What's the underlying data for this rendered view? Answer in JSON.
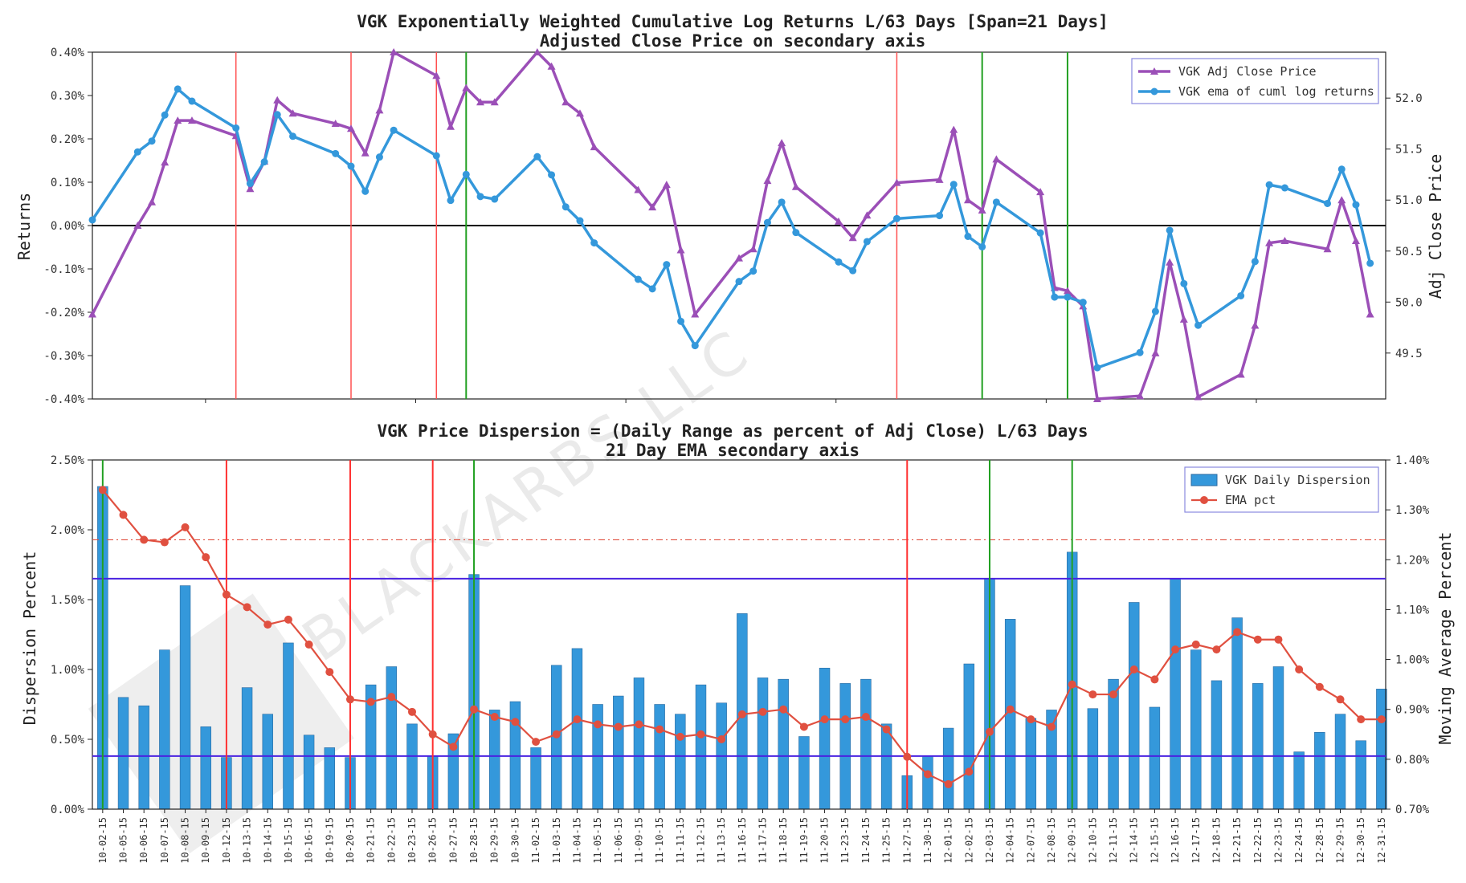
{
  "watermark": "BLACKARBS LLC",
  "chart_data": [
    {
      "type": "line",
      "title": "VGK Exponentially Weighted Cumulative Log Returns L/63 Days [Span=21 Days]",
      "subtitle": "Adjusted Close Price on secondary axis",
      "ylabel": "Returns",
      "y2label": "Adj Close Price",
      "ylim": [
        -0.4,
        0.4
      ],
      "y2lim": [
        49.05,
        52.45
      ],
      "xlim": [
        0,
        1
      ],
      "yticks": [
        "0.40%",
        "0.30%",
        "0.20%",
        "0.10%",
        "0.00%",
        "-0.10%",
        "-0.20%",
        "-0.30%",
        "-0.40%"
      ],
      "ytick_values": [
        0.4,
        0.3,
        0.2,
        0.1,
        0.0,
        -0.1,
        -0.2,
        -0.3,
        -0.4
      ],
      "y2ticks": [
        "52.0",
        "51.5",
        "51.0",
        "50.5",
        "50.0",
        "49.5"
      ],
      "y2tick_values": [
        52.0,
        51.5,
        51.0,
        50.5,
        50.0,
        49.5
      ],
      "zero_line": 0.0,
      "legend": [
        "VGK Adj Close Price",
        "VGK ema of cuml log returns"
      ],
      "legend_position": "top-right",
      "red_vlines": [
        0.111,
        0.2,
        0.266,
        0.622
      ],
      "green_vlines": [
        0.289,
        0.688,
        0.754
      ],
      "series": [
        {
          "name": "VGK Adj Close Price",
          "axis": "secondary",
          "color": "#9b4fb7",
          "marker": "triangle",
          "points": [
            [
              0.0,
              49.88
            ],
            [
              0.035,
              50.75
            ],
            [
              0.046,
              50.98
            ],
            [
              0.056,
              51.37
            ],
            [
              0.066,
              51.78
            ],
            [
              0.077,
              51.78
            ],
            [
              0.111,
              51.63
            ],
            [
              0.122,
              51.11
            ],
            [
              0.133,
              51.38
            ],
            [
              0.143,
              51.98
            ],
            [
              0.155,
              51.85
            ],
            [
              0.188,
              51.75
            ],
            [
              0.2,
              51.7
            ],
            [
              0.211,
              51.46
            ],
            [
              0.222,
              51.88
            ],
            [
              0.233,
              52.45
            ],
            [
              0.266,
              52.22
            ],
            [
              0.277,
              51.72
            ],
            [
              0.289,
              52.1
            ],
            [
              0.3,
              51.96
            ],
            [
              0.311,
              51.96
            ],
            [
              0.344,
              52.45
            ],
            [
              0.355,
              52.31
            ],
            [
              0.366,
              51.96
            ],
            [
              0.377,
              51.85
            ],
            [
              0.388,
              51.52
            ],
            [
              0.422,
              51.1
            ],
            [
              0.433,
              50.93
            ],
            [
              0.444,
              51.15
            ],
            [
              0.455,
              50.51
            ],
            [
              0.466,
              49.88
            ],
            [
              0.5,
              50.43
            ],
            [
              0.511,
              50.52
            ],
            [
              0.522,
              51.19
            ],
            [
              0.533,
              51.56
            ],
            [
              0.544,
              51.13
            ],
            [
              0.577,
              50.79
            ],
            [
              0.588,
              50.63
            ],
            [
              0.599,
              50.85
            ],
            [
              0.622,
              51.17
            ],
            [
              0.655,
              51.2
            ],
            [
              0.666,
              51.69
            ],
            [
              0.677,
              51.0
            ],
            [
              0.688,
              50.9
            ],
            [
              0.699,
              51.4
            ],
            [
              0.733,
              51.08
            ],
            [
              0.744,
              50.14
            ],
            [
              0.754,
              50.11
            ],
            [
              0.766,
              49.96
            ],
            [
              0.777,
              49.05
            ],
            [
              0.81,
              49.08
            ],
            [
              0.822,
              49.5
            ],
            [
              0.833,
              50.39
            ],
            [
              0.844,
              49.83
            ],
            [
              0.855,
              49.07
            ],
            [
              0.888,
              49.29
            ],
            [
              0.899,
              49.77
            ],
            [
              0.91,
              50.58
            ],
            [
              0.922,
              50.6
            ],
            [
              0.955,
              50.52
            ],
            [
              0.966,
              51.0
            ],
            [
              0.977,
              50.6
            ],
            [
              0.988,
              49.88
            ]
          ]
        },
        {
          "name": "VGK ema of cuml log returns",
          "axis": "primary",
          "color": "#3498db",
          "marker": "circle",
          "points": [
            [
              0.0,
              0.013
            ],
            [
              0.035,
              0.17
            ],
            [
              0.046,
              0.195
            ],
            [
              0.056,
              0.255
            ],
            [
              0.066,
              0.315
            ],
            [
              0.077,
              0.287
            ],
            [
              0.111,
              0.225
            ],
            [
              0.122,
              0.097
            ],
            [
              0.133,
              0.147
            ],
            [
              0.143,
              0.256
            ],
            [
              0.155,
              0.206
            ],
            [
              0.188,
              0.166
            ],
            [
              0.2,
              0.137
            ],
            [
              0.211,
              0.079
            ],
            [
              0.222,
              0.158
            ],
            [
              0.233,
              0.22
            ],
            [
              0.266,
              0.161
            ],
            [
              0.277,
              0.058
            ],
            [
              0.289,
              0.118
            ],
            [
              0.3,
              0.067
            ],
            [
              0.311,
              0.061
            ],
            [
              0.344,
              0.159
            ],
            [
              0.355,
              0.117
            ],
            [
              0.366,
              0.043
            ],
            [
              0.377,
              0.011
            ],
            [
              0.388,
              -0.04
            ],
            [
              0.422,
              -0.124
            ],
            [
              0.433,
              -0.146
            ],
            [
              0.444,
              -0.09
            ],
            [
              0.455,
              -0.221
            ],
            [
              0.466,
              -0.277
            ],
            [
              0.5,
              -0.129
            ],
            [
              0.511,
              -0.105
            ],
            [
              0.522,
              0.007
            ],
            [
              0.533,
              0.054
            ],
            [
              0.544,
              -0.016
            ],
            [
              0.577,
              -0.084
            ],
            [
              0.588,
              -0.104
            ],
            [
              0.599,
              -0.037
            ],
            [
              0.622,
              0.016
            ],
            [
              0.655,
              0.023
            ],
            [
              0.666,
              0.095
            ],
            [
              0.677,
              -0.025
            ],
            [
              0.688,
              -0.049
            ],
            [
              0.699,
              0.054
            ],
            [
              0.733,
              -0.017
            ],
            [
              0.744,
              -0.165
            ],
            [
              0.754,
              -0.165
            ],
            [
              0.766,
              -0.177
            ],
            [
              0.777,
              -0.328
            ],
            [
              0.81,
              -0.293
            ],
            [
              0.822,
              -0.198
            ],
            [
              0.833,
              -0.011
            ],
            [
              0.844,
              -0.134
            ],
            [
              0.855,
              -0.23
            ],
            [
              0.888,
              -0.162
            ],
            [
              0.899,
              -0.083
            ],
            [
              0.91,
              0.094
            ],
            [
              0.922,
              0.087
            ],
            [
              0.955,
              0.051
            ],
            [
              0.966,
              0.13
            ],
            [
              0.977,
              0.048
            ],
            [
              0.988,
              -0.087
            ]
          ]
        }
      ]
    },
    {
      "type": "bar",
      "title": "VGK Price Dispersion = (Daily Range as percent of Adj Close) L/63 Days",
      "subtitle": "21 Day EMA secondary axis",
      "ylabel": "Dispersion Percent",
      "y2label": "Moving Average Percent",
      "ylim": [
        0,
        2.5
      ],
      "y2lim": [
        0.7,
        1.4
      ],
      "yticks": [
        "2.50%",
        "2.00%",
        "1.50%",
        "1.00%",
        "0.50%",
        "0.00%"
      ],
      "ytick_values": [
        2.5,
        2.0,
        1.5,
        1.0,
        0.5,
        0.0
      ],
      "y2ticks": [
        "1.40%",
        "1.30%",
        "1.20%",
        "1.10%",
        "1.00%",
        "0.90%",
        "0.80%",
        "0.70%"
      ],
      "y2tick_values": [
        1.4,
        1.3,
        1.2,
        1.1,
        1.0,
        0.9,
        0.8,
        0.7
      ],
      "legend": [
        "VGK Daily Dispersion",
        "EMA pct"
      ],
      "legend_position": "top-right",
      "hlines_primary": [
        1.65,
        0.38
      ],
      "hline_secondary_dashed": 1.24,
      "red_vline_categories": [
        6,
        12,
        16,
        39
      ],
      "green_vline_categories": [
        0,
        18,
        43,
        47
      ],
      "categories": [
        "10-02-15",
        "10-05-15",
        "10-06-15",
        "10-07-15",
        "10-08-15",
        "10-09-15",
        "10-12-15",
        "10-13-15",
        "10-14-15",
        "10-15-15",
        "10-16-15",
        "10-19-15",
        "10-20-15",
        "10-21-15",
        "10-22-15",
        "10-23-15",
        "10-26-15",
        "10-27-15",
        "10-28-15",
        "10-29-15",
        "10-30-15",
        "11-02-15",
        "11-03-15",
        "11-04-15",
        "11-05-15",
        "11-06-15",
        "11-09-15",
        "11-10-15",
        "11-11-15",
        "11-12-15",
        "11-13-15",
        "11-16-15",
        "11-17-15",
        "11-18-15",
        "11-19-15",
        "11-20-15",
        "11-23-15",
        "11-24-15",
        "11-25-15",
        "11-27-15",
        "11-30-15",
        "12-01-15",
        "12-02-15",
        "12-03-15",
        "12-04-15",
        "12-07-15",
        "12-08-15",
        "12-09-15",
        "12-10-15",
        "12-11-15",
        "12-14-15",
        "12-15-15",
        "12-16-15",
        "12-17-15",
        "12-18-15",
        "12-21-15",
        "12-22-15",
        "12-23-15",
        "12-24-15",
        "12-28-15",
        "12-29-15",
        "12-30-15",
        "12-31-15"
      ],
      "series": [
        {
          "name": "VGK Daily Dispersion",
          "axis": "primary",
          "color": "#3498db",
          "values": [
            2.31,
            0.8,
            0.74,
            1.14,
            1.6,
            0.59,
            0.37,
            0.87,
            0.68,
            1.19,
            0.53,
            0.44,
            0.37,
            0.89,
            1.02,
            0.61,
            0.38,
            0.54,
            1.68,
            0.71,
            0.77,
            0.44,
            1.03,
            1.15,
            0.75,
            0.81,
            0.94,
            0.75,
            0.68,
            0.89,
            0.76,
            1.4,
            0.94,
            0.93,
            0.52,
            1.01,
            0.9,
            0.93,
            0.61,
            0.24,
            0.38,
            0.58,
            1.04,
            1.65,
            1.36,
            0.65,
            0.71,
            1.84,
            0.72,
            0.93,
            1.48,
            0.73,
            1.65,
            1.14,
            0.92,
            1.37,
            0.9,
            1.02,
            0.41,
            0.55,
            0.68,
            0.49,
            0.86
          ]
        },
        {
          "name": "EMA pct",
          "axis": "secondary",
          "color": "#e05040",
          "values": [
            1.34,
            1.29,
            1.24,
            1.235,
            1.265,
            1.205,
            1.13,
            1.105,
            1.07,
            1.08,
            1.03,
            0.975,
            0.92,
            0.915,
            0.925,
            0.895,
            0.85,
            0.825,
            0.9,
            0.885,
            0.875,
            0.835,
            0.85,
            0.88,
            0.87,
            0.865,
            0.87,
            0.86,
            0.845,
            0.85,
            0.84,
            0.89,
            0.895,
            0.9,
            0.865,
            0.88,
            0.88,
            0.885,
            0.86,
            0.805,
            0.77,
            0.75,
            0.775,
            0.855,
            0.9,
            0.88,
            0.865,
            0.95,
            0.93,
            0.93,
            0.98,
            0.96,
            1.02,
            1.03,
            1.02,
            1.055,
            1.04,
            1.04,
            0.98,
            0.945,
            0.92,
            0.88,
            0.88
          ]
        }
      ]
    }
  ]
}
